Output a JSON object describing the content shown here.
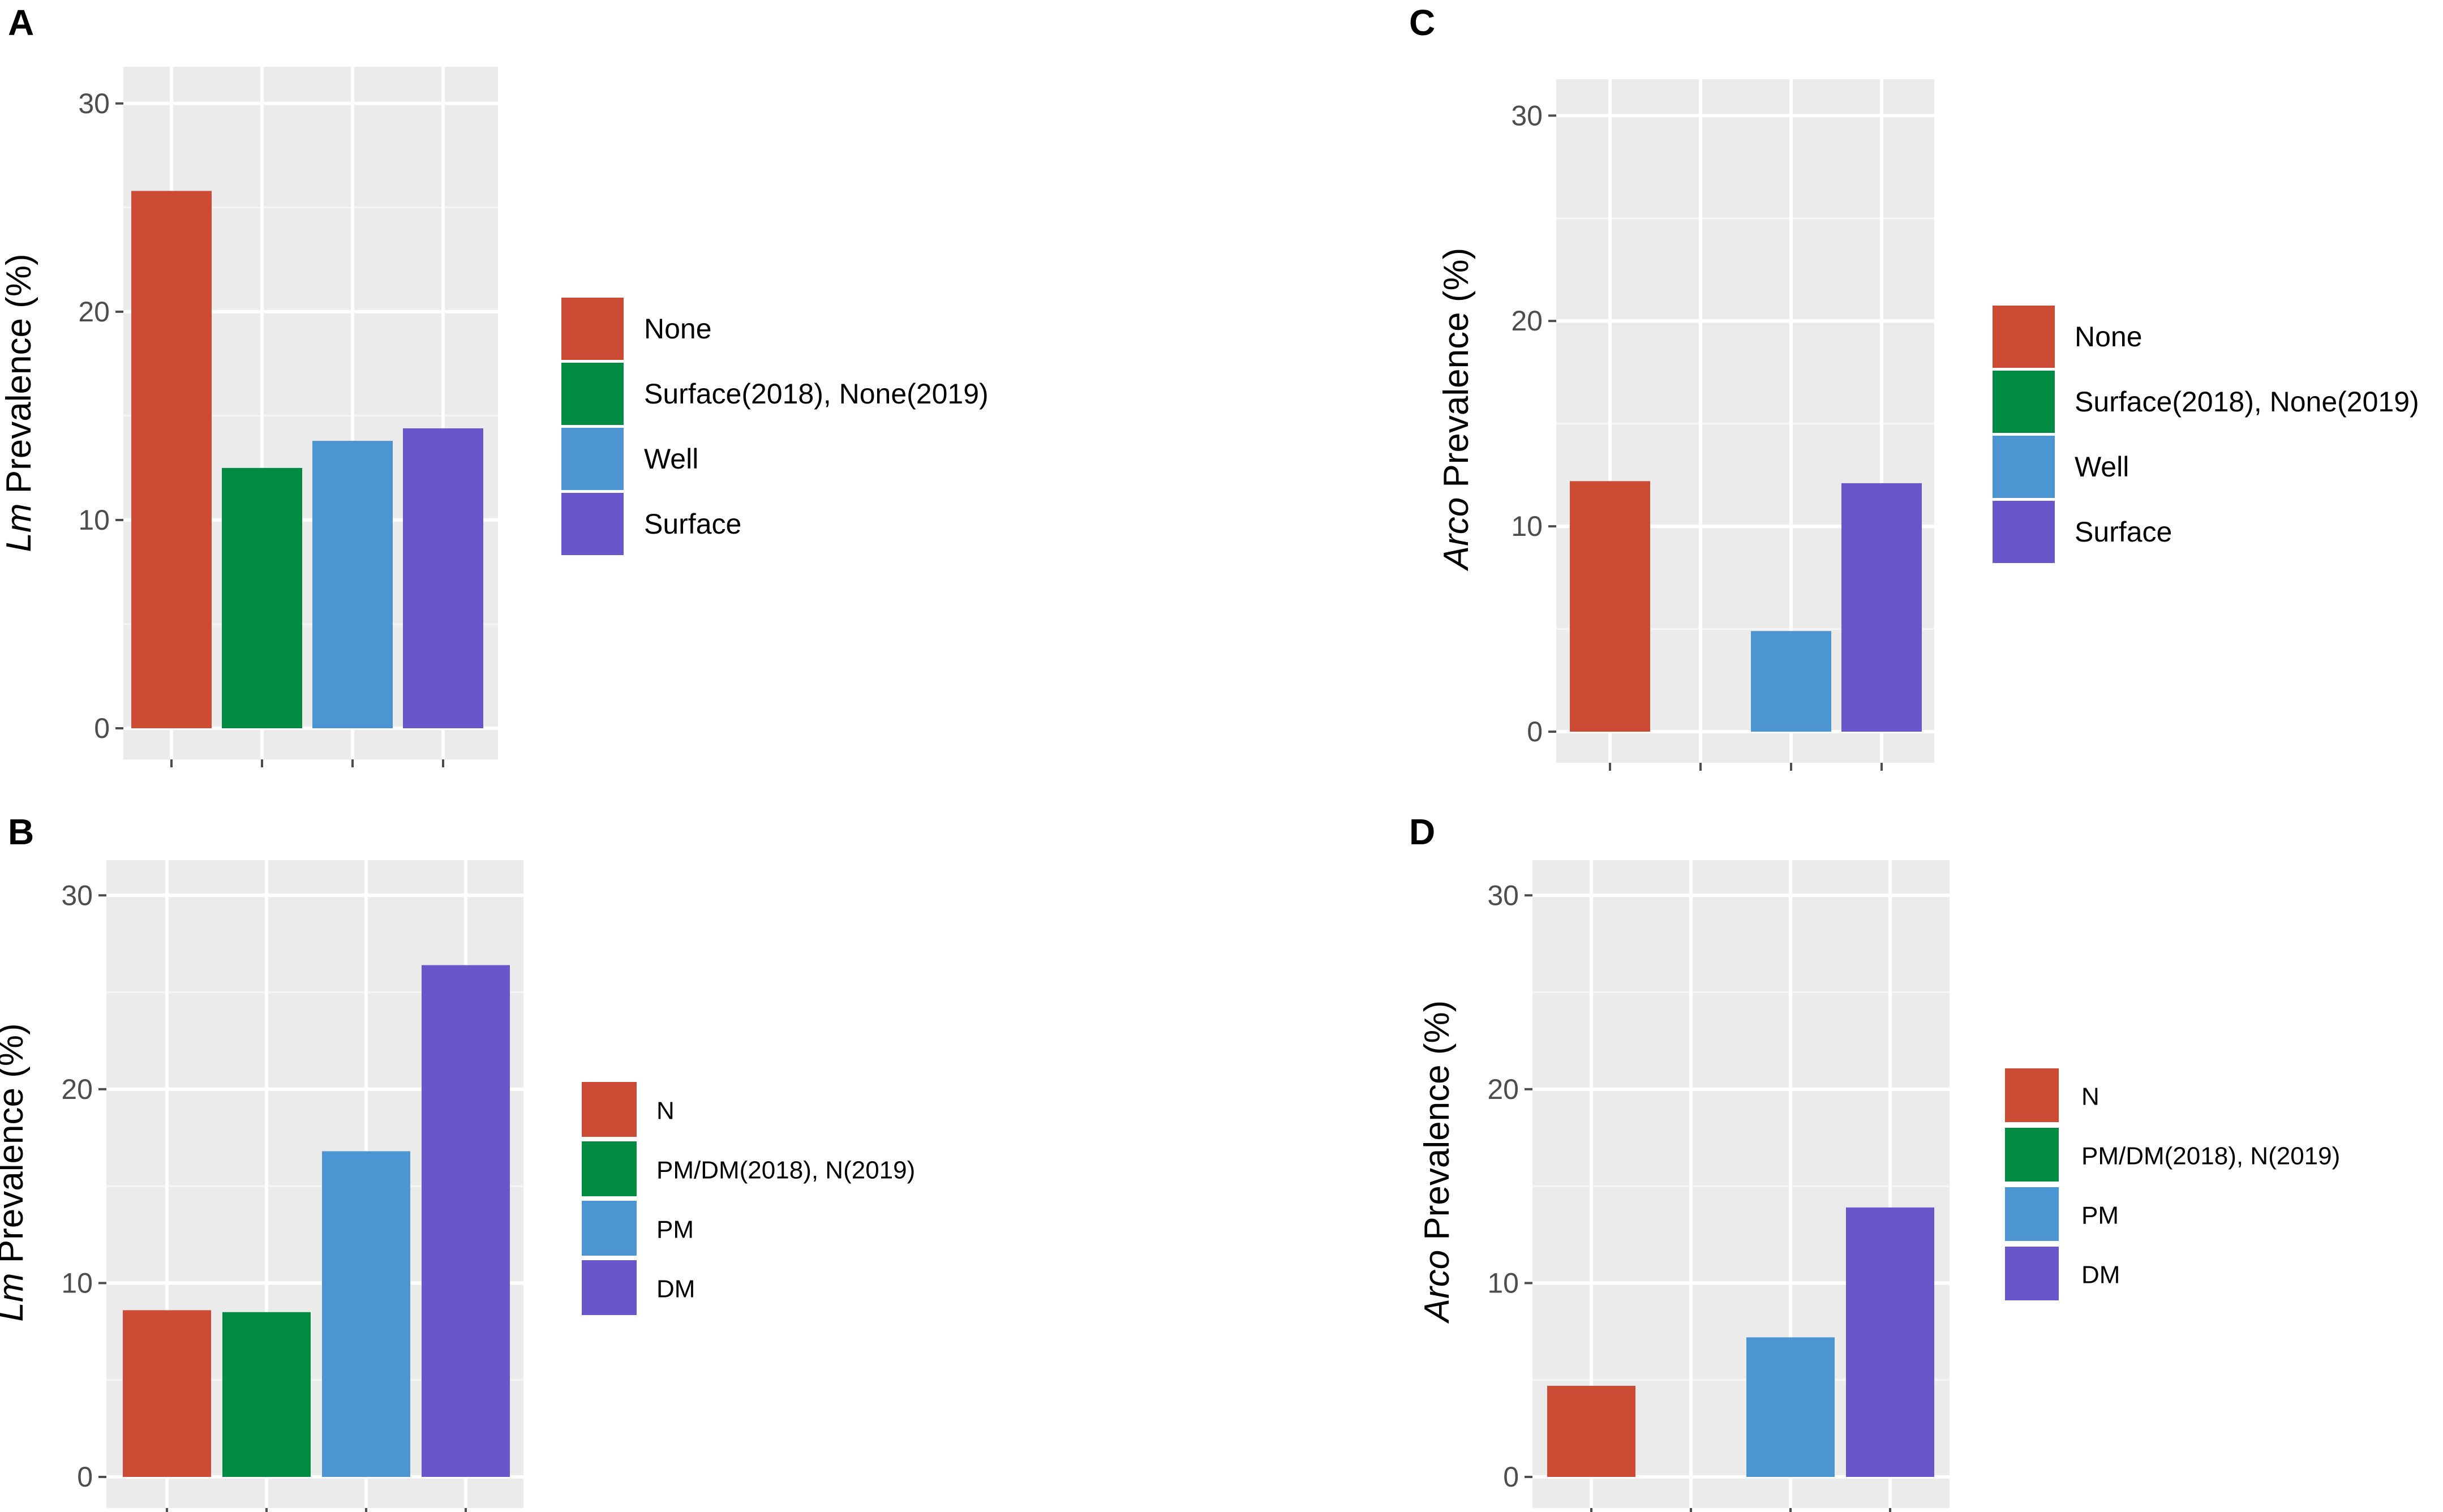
{
  "chart_data": [
    {
      "panel": "A",
      "type": "bar",
      "ylabel_italic": "Lm",
      "ylabel_rest": " Prevalence (%)",
      "xlabel": "",
      "ylim": [
        0,
        31
      ],
      "yticks": [
        0,
        10,
        20,
        30
      ],
      "categories": [
        "None",
        "Surface(2018), None(2019)",
        "Well",
        "Surface"
      ],
      "values": [
        25.8,
        12.5,
        13.8,
        14.4
      ],
      "colors": [
        "#CB4B35",
        "#018A42",
        "#4D94D3",
        "#6A56CB"
      ],
      "legend": [
        "None",
        "Surface(2018), None(2019)",
        "Well",
        "Surface"
      ]
    },
    {
      "panel": "B",
      "type": "bar",
      "ylabel_italic": "Lm",
      "ylabel_rest": " Prevalence (%)",
      "xlabel": "",
      "ylim": [
        0,
        31
      ],
      "yticks": [
        0,
        10,
        20,
        30
      ],
      "categories": [
        "N",
        "PM/DM(2018), N(2019)",
        "PM",
        "DM"
      ],
      "values": [
        8.6,
        8.5,
        16.8,
        26.4
      ],
      "colors": [
        "#CB4B35",
        "#018A42",
        "#4D94D3",
        "#6A56CB"
      ],
      "legend": [
        "N",
        "PM/DM(2018), N(2019)",
        "PM",
        "DM"
      ]
    },
    {
      "panel": "C",
      "type": "bar",
      "ylabel_italic": "Arco",
      "ylabel_rest": " Prevalence (%)",
      "xlabel": "",
      "ylim": [
        0,
        31
      ],
      "yticks": [
        0,
        10,
        20,
        30
      ],
      "categories": [
        "None",
        "Surface(2018), None(2019)",
        "Well",
        "Surface"
      ],
      "values": [
        12.2,
        0,
        4.9,
        12.1
      ],
      "colors": [
        "#CB4B35",
        "#018A42",
        "#4D94D3",
        "#6A56CB"
      ],
      "legend": [
        "None",
        "Surface(2018), None(2019)",
        "Well",
        "Surface"
      ]
    },
    {
      "panel": "D",
      "type": "bar",
      "ylabel_italic": "Arco",
      "ylabel_rest": " Prevalence (%)",
      "xlabel": "",
      "ylim": [
        0,
        31
      ],
      "yticks": [
        0,
        10,
        20,
        30
      ],
      "categories": [
        "N",
        "PM/DM(2018), N(2019)",
        "PM",
        "DM"
      ],
      "values": [
        4.7,
        0,
        7.2,
        13.9
      ],
      "colors": [
        "#CB4B35",
        "#018A42",
        "#4D94D3",
        "#6A56CB"
      ],
      "legend": [
        "N",
        "PM/DM(2018), N(2019)",
        "PM",
        "DM"
      ]
    }
  ]
}
